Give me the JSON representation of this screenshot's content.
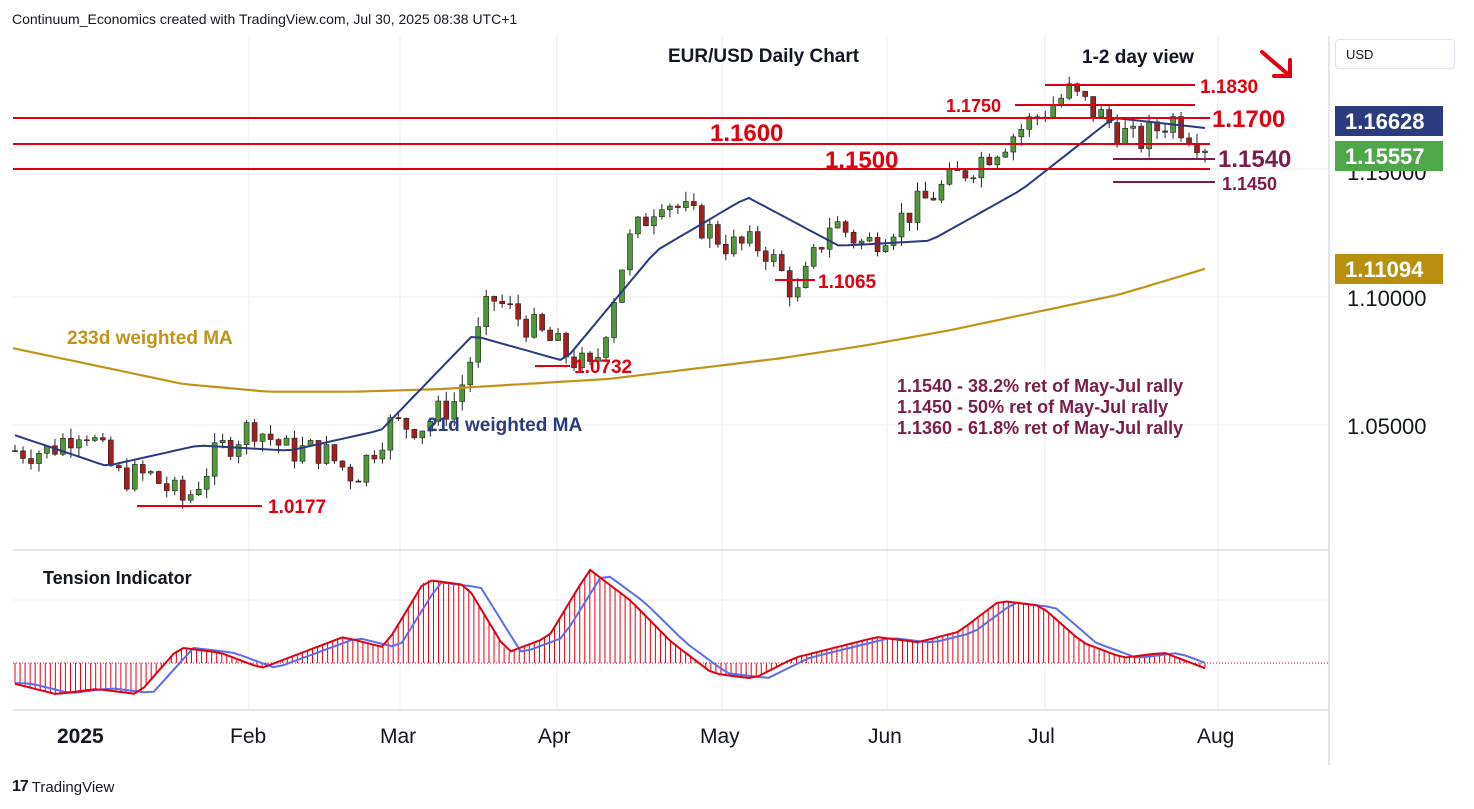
{
  "header": {
    "text": "Continuum_Economics created with TradingView.com, Jul 30, 2025 08:38 UTC+1"
  },
  "footer": {
    "brand": "TradingView",
    "logo_glyph": "17"
  },
  "currency_button": "USD",
  "colors": {
    "red": "#e0000f",
    "navy": "#2a3a80",
    "gold": "#bf9418",
    "maroon": "#7a1d4a",
    "up": "#4e9a3a",
    "down": "#a31f1f",
    "green_tag": "#4ea849",
    "navy_tag": "#2c3a80",
    "gold_tag": "#b8900e"
  },
  "chart_data": [
    {
      "type": "candlestick",
      "title": "EUR/USD Daily Chart",
      "subtitle": "1-2 day view",
      "x_ticks": [
        "2025",
        "Feb",
        "Mar",
        "Apr",
        "May",
        "Jun",
        "Jul",
        "Aug"
      ],
      "y_ticks": [
        "1.05000",
        "1.10000",
        "1.15000"
      ],
      "price_tags": {
        "ma21": "1.16628",
        "last": "1.15557",
        "ma233": "1.11094"
      },
      "levels": [
        {
          "value": 1.183,
          "label": "1.1830"
        },
        {
          "value": 1.175,
          "label": "1.1750"
        },
        {
          "value": 1.17,
          "label": "1.1700"
        },
        {
          "value": 1.16,
          "label": "1.1600"
        },
        {
          "value": 1.154,
          "label": "1.1540"
        },
        {
          "value": 1.15,
          "label": "1.1500"
        },
        {
          "value": 1.145,
          "label": "1.1450"
        },
        {
          "value": 1.1065,
          "label": "1.1065"
        },
        {
          "value": 1.0732,
          "label": "1.0732"
        },
        {
          "value": 1.0177,
          "label": "1.0177"
        }
      ],
      "annotations": [
        "1.1540 - 38.2% ret of May-Jul rally",
        "1.1450 - 50% ret of May-Jul rally",
        "1.1360 - 61.8% ret of May-Jul rally"
      ],
      "series": [
        {
          "name": "233d weighted MA",
          "values": [
            1.08,
            1.073,
            1.066,
            1.063,
            1.063,
            1.064,
            1.066,
            1.068,
            1.072,
            1.076,
            1.081,
            1.087,
            1.094,
            1.101,
            1.111
          ]
        },
        {
          "name": "21d weighted MA",
          "values": [
            1.046,
            1.034,
            1.042,
            1.04,
            1.048,
            1.085,
            1.075,
            1.118,
            1.139,
            1.12,
            1.122,
            1.142,
            1.17,
            1.166
          ]
        }
      ],
      "close_path": [
        1.04,
        1.04,
        1.05,
        1.03,
        1.03,
        1.02,
        1.04,
        1.05,
        1.04,
        1.04,
        1.03,
        1.05,
        1.05,
        1.06,
        1.1,
        1.09,
        1.08,
        1.07,
        1.12,
        1.14,
        1.13,
        1.12,
        1.12,
        1.1,
        1.13,
        1.12,
        1.13,
        1.14,
        1.15,
        1.16,
        1.17,
        1.18,
        1.17,
        1.16,
        1.17,
        1.16
      ]
    },
    {
      "type": "area",
      "title": "Tension Indicator",
      "values": [
        -0.4,
        -0.6,
        -0.5,
        -0.6,
        0.3,
        0.2,
        -0.1,
        0.2,
        0.5,
        0.3,
        1.6,
        1.5,
        0.2,
        0.5,
        1.8,
        1.2,
        0.4,
        -0.2,
        -0.3,
        0.1,
        0.3,
        0.5,
        0.4,
        0.6,
        1.2,
        1.1,
        0.4,
        0.1,
        0.2,
        -0.1
      ]
    }
  ]
}
